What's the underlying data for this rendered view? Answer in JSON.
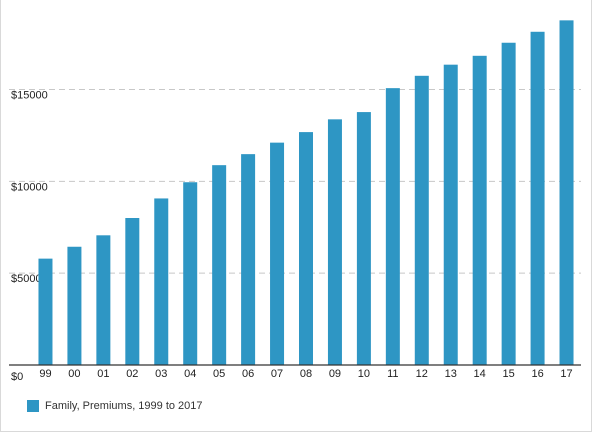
{
  "chart_data": {
    "type": "bar",
    "categories": [
      "99",
      "00",
      "01",
      "02",
      "03",
      "04",
      "05",
      "06",
      "07",
      "08",
      "09",
      "10",
      "11",
      "12",
      "13",
      "14",
      "15",
      "16",
      "17"
    ],
    "series": [
      {
        "name": "Family, Premiums, 1999 to 2017",
        "color": "#2e96c4",
        "values": [
          5791,
          6438,
          7061,
          8003,
          9068,
          9950,
          10880,
          11480,
          12106,
          12680,
          13375,
          13770,
          15073,
          15745,
          16351,
          16834,
          17545,
          18142,
          18764
        ]
      }
    ],
    "y_ticks": [
      {
        "value": 0,
        "label": "$0"
      },
      {
        "value": 5000,
        "label": "$5000"
      },
      {
        "value": 10000,
        "label": "$10000"
      },
      {
        "value": 15000,
        "label": "$15000"
      }
    ],
    "ylim": [
      0,
      19600
    ],
    "grid": "dashed-horizontal",
    "legend_position": "bottom-left",
    "title": "",
    "xlabel": "",
    "ylabel": ""
  }
}
